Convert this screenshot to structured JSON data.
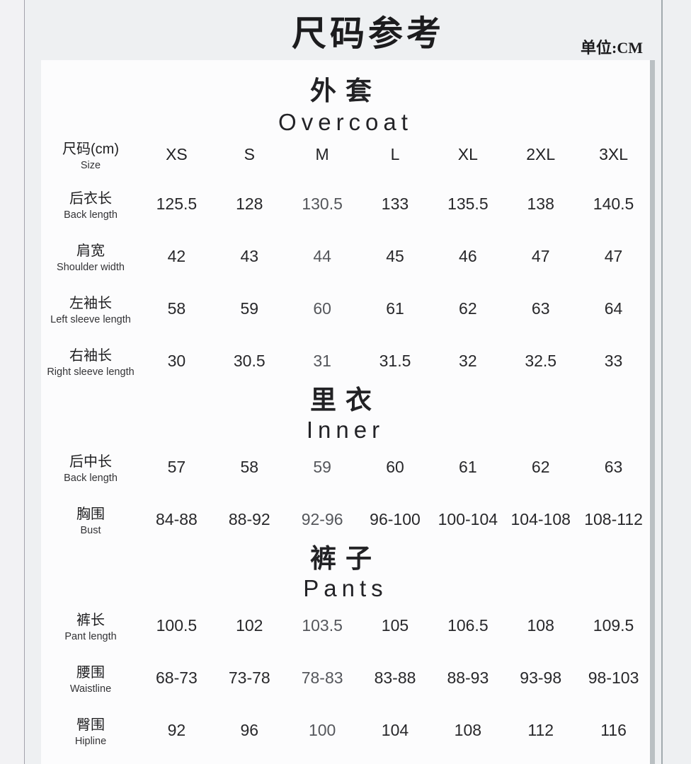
{
  "page": {
    "title": "尺码参考",
    "unit_label": "单位:CM"
  },
  "table": {
    "header": {
      "label_zh": "尺码(cm)",
      "label_en": "Size",
      "sizes": [
        "XS",
        "S",
        "M",
        "L",
        "XL",
        "2XL",
        "3XL"
      ]
    },
    "sections": [
      {
        "name_zh": "外套",
        "name_en": "Overcoat",
        "rows": [
          {
            "label_zh": "后衣长",
            "label_en": "Back length",
            "values": [
              "125.5",
              "128",
              "130.5",
              "133",
              "135.5",
              "138",
              "140.5"
            ]
          },
          {
            "label_zh": "肩宽",
            "label_en": "Shoulder width",
            "values": [
              "42",
              "43",
              "44",
              "45",
              "46",
              "47",
              "47"
            ]
          },
          {
            "label_zh": "左袖长",
            "label_en": "Left sleeve length",
            "values": [
              "58",
              "59",
              "60",
              "61",
              "62",
              "63",
              "64"
            ]
          },
          {
            "label_zh": "右袖长",
            "label_en": "Right sleeve length",
            "values": [
              "30",
              "30.5",
              "31",
              "31.5",
              "32",
              "32.5",
              "33"
            ]
          }
        ]
      },
      {
        "name_zh": "里衣",
        "name_en": "Inner",
        "rows": [
          {
            "label_zh": "后中长",
            "label_en": "Back length",
            "values": [
              "57",
              "58",
              "59",
              "60",
              "61",
              "62",
              "63"
            ]
          },
          {
            "label_zh": "胸围",
            "label_en": "Bust",
            "values": [
              "84-88",
              "88-92",
              "92-96",
              "96-100",
              "100-104",
              "104-108",
              "108-112"
            ]
          }
        ]
      },
      {
        "name_zh": "裤子",
        "name_en": "Pants",
        "rows": [
          {
            "label_zh": "裤长",
            "label_en": "Pant length",
            "values": [
              "100.5",
              "102",
              "103.5",
              "105",
              "106.5",
              "108",
              "109.5"
            ]
          },
          {
            "label_zh": "腰围",
            "label_en": "Waistline",
            "values": [
              "68-73",
              "73-78",
              "78-83",
              "83-88",
              "88-93",
              "93-98",
              "98-103"
            ]
          },
          {
            "label_zh": "臀围",
            "label_en": "Hipline",
            "values": [
              "92",
              "96",
              "100",
              "104",
              "108",
              "112",
              "116"
            ]
          }
        ]
      }
    ]
  },
  "colors": {
    "page_background": "#eef0f2",
    "card_background": "#fcfcfd",
    "card_shadow": "#bac0c3",
    "divider_line": "#a3a3ab",
    "text_primary": "#1c1c1e",
    "text_muted_column": "#55575c"
  }
}
